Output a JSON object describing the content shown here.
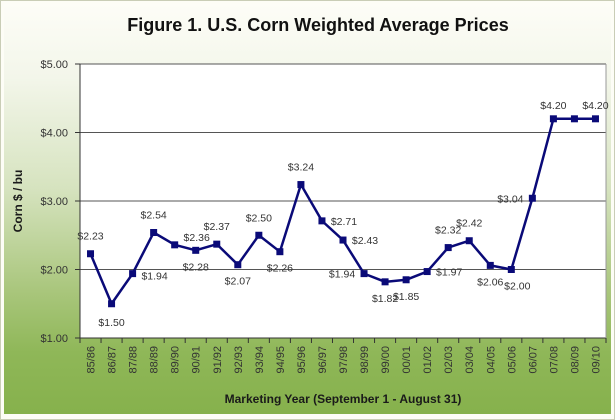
{
  "chart_data": {
    "type": "line",
    "title": "Figure 1. U.S. Corn Weighted Average Prices",
    "xlabel": "Marketing Year (September 1 - August 31)",
    "ylabel": "Corn $ / bu",
    "ylim": [
      1.0,
      5.0
    ],
    "yticks": [
      1.0,
      2.0,
      3.0,
      4.0,
      5.0
    ],
    "ytick_labels": [
      "$1.00",
      "$2.00",
      "$3.00",
      "$4.00",
      "$5.00"
    ],
    "grid": "horizontal",
    "legend": "none",
    "categories": [
      "85/86",
      "86/87",
      "87/88",
      "88/89",
      "89/90",
      "90/91",
      "91/92",
      "92/93",
      "93/94",
      "94/95",
      "95/96",
      "96/97",
      "97/98",
      "98/99",
      "99/00",
      "00/01",
      "01/02",
      "02/03",
      "03/04",
      "04/05",
      "05/06",
      "06/07",
      "07/08",
      "08/09",
      "09/10"
    ],
    "series": [
      {
        "name": "Corn Weighted Average Price",
        "color": "#0a0a78",
        "values": [
          2.23,
          1.5,
          1.94,
          2.54,
          2.36,
          2.28,
          2.37,
          2.07,
          2.5,
          2.26,
          3.24,
          2.71,
          2.43,
          1.94,
          1.82,
          1.85,
          1.97,
          2.32,
          2.42,
          2.06,
          2.0,
          3.04,
          4.2,
          4.2,
          4.2
        ],
        "data_labels": [
          "$2.23",
          "$1.50",
          "$1.94",
          "$2.54",
          "$2.36",
          "$2.28",
          "$2.37",
          "$2.07",
          "$2.50",
          "$2.26",
          "$3.24",
          "$2.71",
          "$2.43",
          "$1.94",
          "$1.82",
          "$1.85",
          "$1.97",
          "$2.32",
          "$2.42",
          "$2.06",
          "$2.00",
          "$3.04",
          "$4.20",
          "",
          "$4.20"
        ]
      }
    ]
  }
}
